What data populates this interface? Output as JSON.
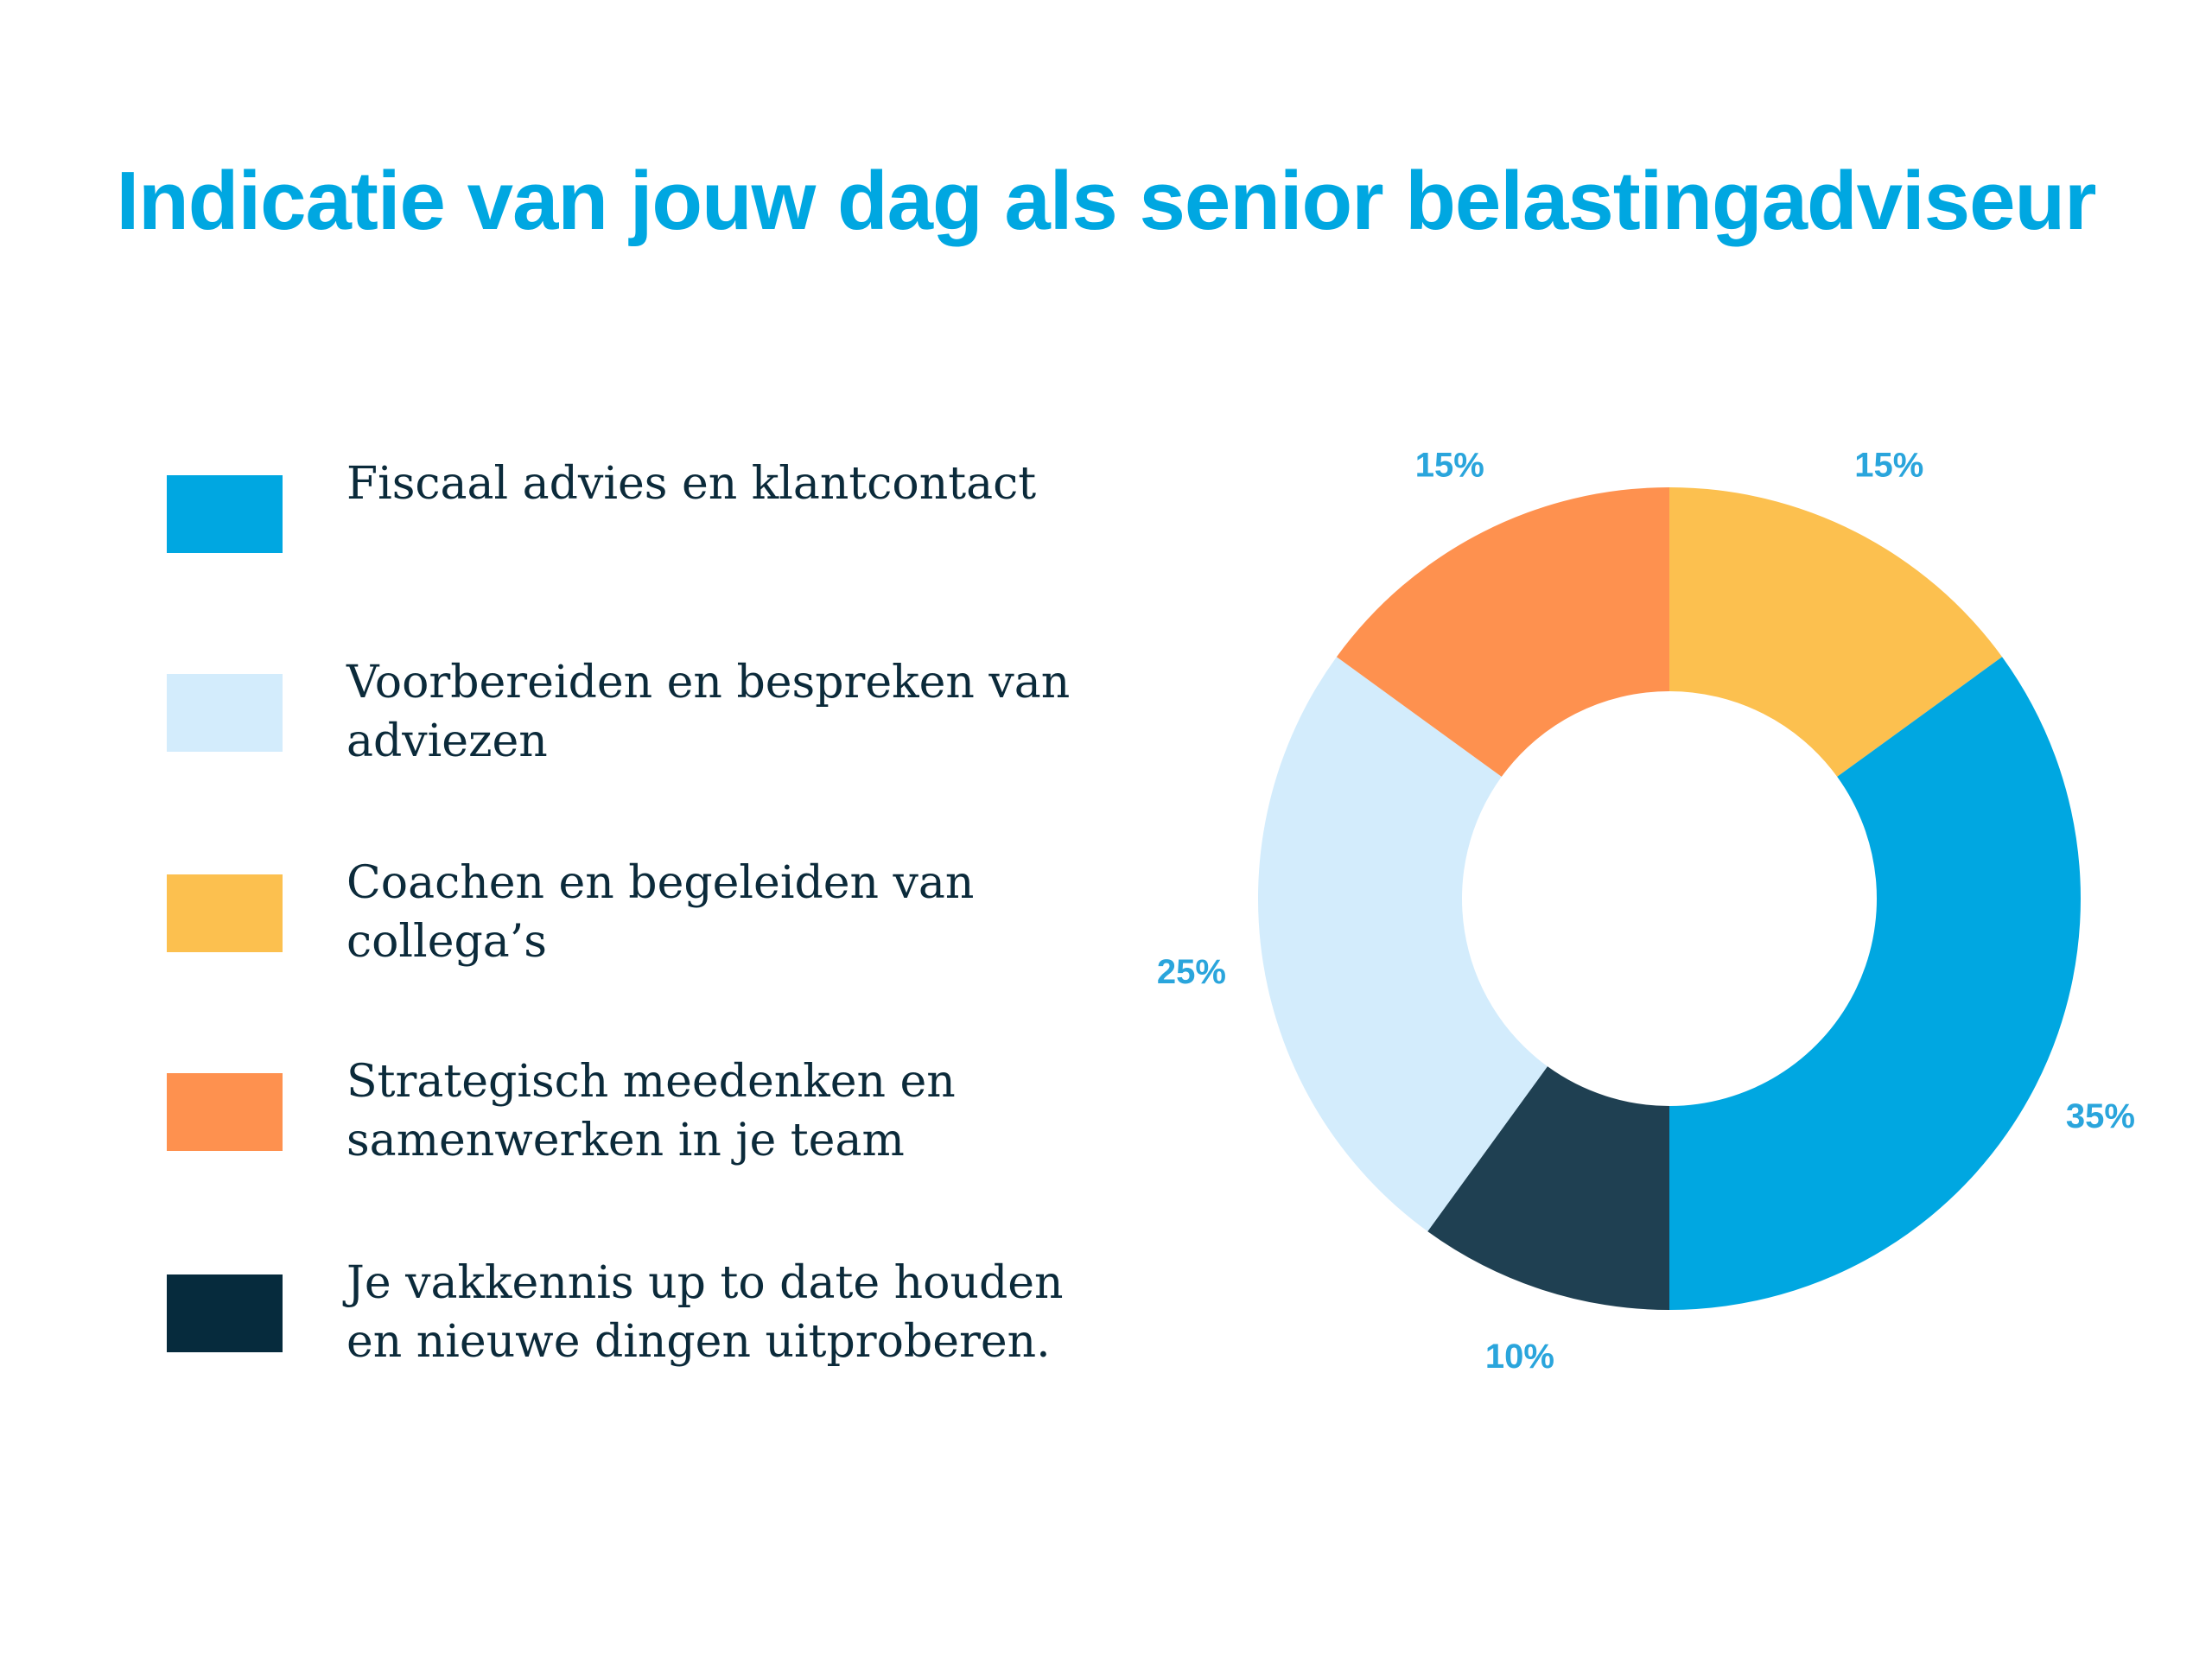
{
  "title": "Indicatie van jouw dag als senior belastingadviseur",
  "chart_data": {
    "type": "pie",
    "title": "Indicatie van jouw dag als senior belastingadviseur",
    "variant": "donut",
    "legend_position": "left",
    "categories": [
      "Fiscaal advies en klantcontact",
      "Voorbereiden en bespreken van adviezen",
      "Coachen en begeleiden van collega’s",
      "Strategisch meedenken en samenwerken in je team",
      "Je vakkennis up to date houden en nieuwe dingen uitproberen."
    ],
    "values": [
      35,
      25,
      15,
      15,
      10
    ],
    "data_labels": [
      "35%",
      "25%",
      "15%",
      "15%",
      "10%"
    ],
    "colors": [
      "#00a7e1",
      "#d3ecfc",
      "#fcc04f",
      "#fe914f",
      "#1f4052"
    ],
    "legend_colors": [
      "#00a7e1",
      "#d3ecfc",
      "#fcc04f",
      "#fe914f",
      "#062b3d"
    ],
    "slice_order_clockwise_from_top": [
      "Coachen en begeleiden van collega’s",
      "Fiscaal advies en klantcontact",
      "Je vakkennis up to date houden en nieuwe dingen uitproberen.",
      "Voorbereiden en bespreken van adviezen",
      "Strategisch meedenken en samenwerken in je team"
    ]
  }
}
